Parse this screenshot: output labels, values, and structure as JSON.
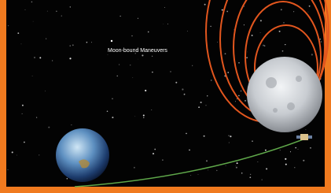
{
  "image": {
    "label": "Moon-bound Maneuvers"
  }
}
